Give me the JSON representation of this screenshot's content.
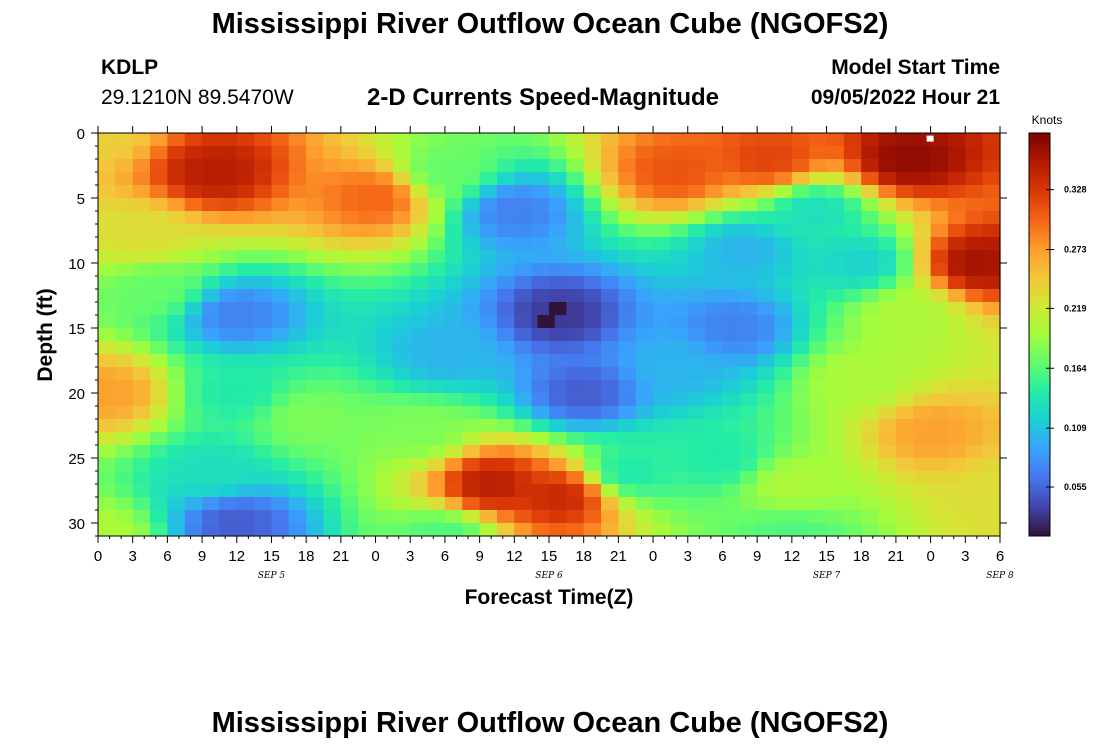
{
  "header": {
    "title": "Mississippi River Outflow Ocean Cube (NGOFS2)",
    "station": "KDLP",
    "coordinates": "29.1210N  89.5470W",
    "subtitle": "2-D Currents Speed-Magnitude",
    "model_start_label": "Model Start Time",
    "model_start_time": "09/05/2022 Hour 21"
  },
  "footer": {
    "title": "Mississippi River Outflow Ocean Cube (NGOFS2)"
  },
  "chart_data": {
    "type": "heatmap",
    "xlabel": "Forecast Time(Z)",
    "ylabel": "Depth (ft)",
    "x_tick_labels": [
      "0",
      "3",
      "6",
      "9",
      "12",
      "15",
      "18",
      "21",
      "0",
      "3",
      "6",
      "9",
      "12",
      "15",
      "18",
      "21",
      "0",
      "3",
      "6",
      "9",
      "12",
      "15",
      "18",
      "21",
      "0",
      "3",
      "6"
    ],
    "x_date_labels": [
      {
        "label": "SEP 5",
        "at_hour": 15
      },
      {
        "label": "SEP 6",
        "at_hour": 39
      },
      {
        "label": "SEP 7",
        "at_hour": 63
      },
      {
        "label": "SEP 8",
        "at_hour": 78
      }
    ],
    "x_range_hours": [
      0,
      78
    ],
    "y_ticks": [
      0,
      5,
      10,
      15,
      20,
      25,
      30
    ],
    "y_range_ft": [
      0,
      31
    ],
    "y_inverted": true,
    "colorbar": {
      "label": "Knots",
      "ticks": [
        "0.055",
        "0.109",
        "0.164",
        "0.219",
        "0.273",
        "0.328"
      ],
      "range": [
        0.01,
        0.38
      ],
      "colors": [
        "#30123b",
        "#4145ab",
        "#4675ed",
        "#39a2fc",
        "#1bcfd4",
        "#24eca6",
        "#61fc6c",
        "#a4fc3b",
        "#d1e834",
        "#f3c63a",
        "#fe9b2d",
        "#f36315",
        "#d93806",
        "#b11901",
        "#7a0403"
      ]
    },
    "grid": false,
    "cell_hours": 1.5,
    "cell_depth_ft": 1,
    "anchors": [
      {
        "t": 0,
        "d": 0,
        "v": 0.24
      },
      {
        "t": 10,
        "d": 3,
        "v": 0.35
      },
      {
        "t": 24,
        "d": 5,
        "v": 0.3
      },
      {
        "t": 4,
        "d": 8,
        "v": 0.23
      },
      {
        "t": 5,
        "d": 12,
        "v": 0.17
      },
      {
        "t": 1,
        "d": 20,
        "v": 0.27
      },
      {
        "t": 12,
        "d": 14,
        "v": 0.07
      },
      {
        "t": 12,
        "d": 20,
        "v": 0.14
      },
      {
        "t": 18,
        "d": 22,
        "v": 0.18
      },
      {
        "t": 10,
        "d": 26,
        "v": 0.13
      },
      {
        "t": 12,
        "d": 30,
        "v": 0.05
      },
      {
        "t": 30,
        "d": 3,
        "v": 0.17
      },
      {
        "t": 36,
        "d": 6,
        "v": 0.07
      },
      {
        "t": 40,
        "d": 14,
        "v": 0.03
      },
      {
        "t": 42,
        "d": 20,
        "v": 0.05
      },
      {
        "t": 30,
        "d": 17,
        "v": 0.1
      },
      {
        "t": 28,
        "d": 23,
        "v": 0.18
      },
      {
        "t": 34,
        "d": 27,
        "v": 0.35
      },
      {
        "t": 40,
        "d": 28,
        "v": 0.34
      },
      {
        "t": 46,
        "d": 26,
        "v": 0.14
      },
      {
        "t": 50,
        "d": 3,
        "v": 0.31
      },
      {
        "t": 58,
        "d": 2,
        "v": 0.32
      },
      {
        "t": 62,
        "d": 6,
        "v": 0.13
      },
      {
        "t": 56,
        "d": 9,
        "v": 0.1
      },
      {
        "t": 55,
        "d": 15,
        "v": 0.07
      },
      {
        "t": 50,
        "d": 18,
        "v": 0.1
      },
      {
        "t": 70,
        "d": 2,
        "v": 0.37
      },
      {
        "t": 76,
        "d": 10,
        "v": 0.36
      },
      {
        "t": 70,
        "d": 14,
        "v": 0.2
      },
      {
        "t": 66,
        "d": 10,
        "v": 0.12
      },
      {
        "t": 72,
        "d": 23,
        "v": 0.27
      },
      {
        "t": 78,
        "d": 28,
        "v": 0.23
      },
      {
        "t": 60,
        "d": 27,
        "v": 0.2
      },
      {
        "t": 54,
        "d": 25,
        "v": 0.14
      },
      {
        "t": 60,
        "d": 31,
        "v": 0.16
      },
      {
        "t": 30,
        "d": 31,
        "v": 0.16
      },
      {
        "t": 0,
        "d": 31,
        "v": 0.2
      },
      {
        "t": 66,
        "d": 19,
        "v": 0.2
      }
    ],
    "marked_cells": [
      {
        "t": 39,
        "d": 13,
        "v": 0.0
      },
      {
        "t": 38,
        "d": 14,
        "v": 0.0
      }
    ],
    "annotations": [
      {
        "t": 72,
        "d": 0.2,
        "v": 1.0
      }
    ]
  }
}
